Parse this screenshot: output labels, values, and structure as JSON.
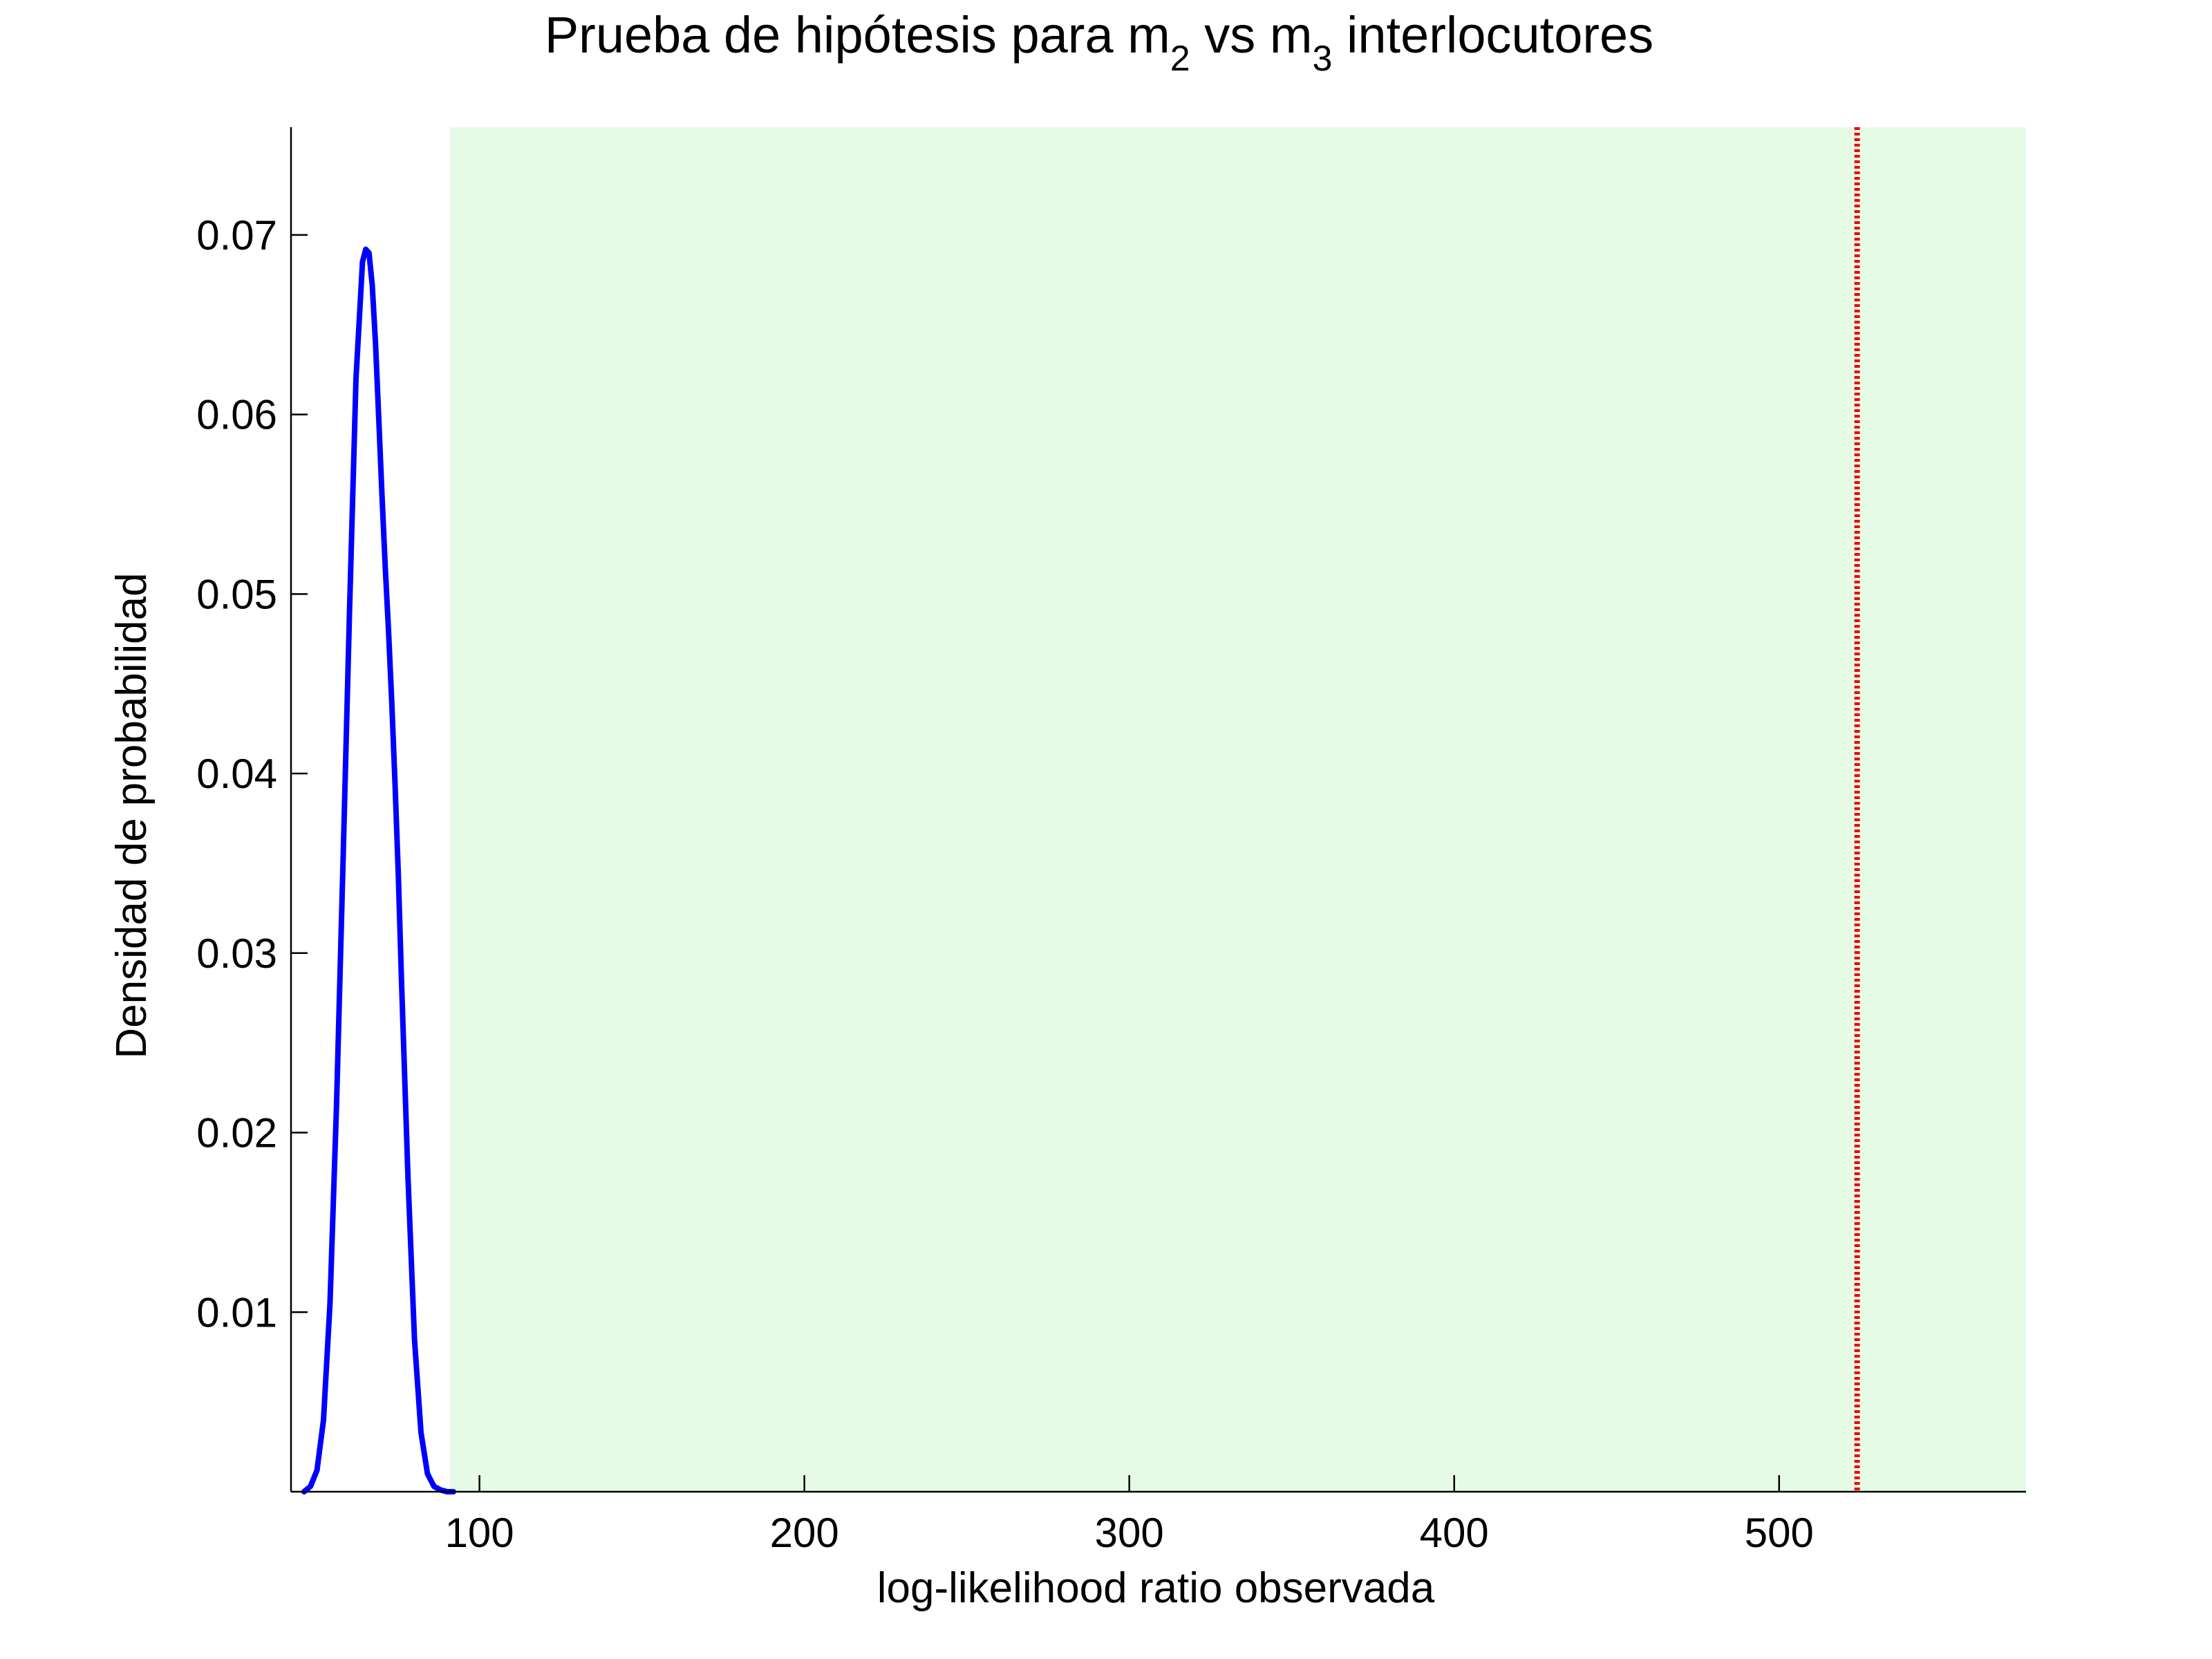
{
  "chart_data": {
    "type": "line",
    "title": {
      "prefix": "Prueba de hipótesis para m",
      "sub_1": "2",
      "middle": " vs m",
      "sub_2": "3",
      "suffix": " interlocutores"
    },
    "xlabel": "log-likelihood ratio observada",
    "ylabel": "Densidad de probabilidad",
    "xlim": [
      42,
      576
    ],
    "ylim": [
      0,
      0.076
    ],
    "x_ticks": [
      100,
      200,
      300,
      400,
      500
    ],
    "x_tick_labels": [
      "100",
      "200",
      "300",
      "400",
      "500"
    ],
    "y_ticks": [
      0.01,
      0.02,
      0.03,
      0.04,
      0.05,
      0.06,
      0.07
    ],
    "y_tick_labels": [
      "0.01",
      "0.02",
      "0.03",
      "0.04",
      "0.05",
      "0.06",
      "0.07"
    ],
    "grid": false,
    "rejection_region": {
      "x_start": 91,
      "x_end": 576,
      "color": "#e6fbe6"
    },
    "observed_line": {
      "x": 524,
      "color": "#ee0000",
      "style": "dotted"
    },
    "series": [
      {
        "color": "#0000ff",
        "x": [
          46,
          48,
          50,
          52,
          54,
          56,
          58,
          60,
          62,
          64,
          65,
          66,
          67,
          68,
          69,
          70,
          71,
          72,
          73,
          74,
          75,
          76,
          78,
          80,
          82,
          84,
          86,
          88,
          90,
          92
        ],
        "y": [
          0.0,
          0.0003,
          0.0012,
          0.004,
          0.0105,
          0.0215,
          0.035,
          0.049,
          0.062,
          0.0685,
          0.0692,
          0.069,
          0.0672,
          0.064,
          0.0598,
          0.0555,
          0.0515,
          0.048,
          0.044,
          0.0395,
          0.0345,
          0.0285,
          0.0175,
          0.0085,
          0.0033,
          0.001,
          0.0003,
          0.0001,
          0.0,
          0.0
        ]
      }
    ],
    "colors": {
      "axes": "#000000",
      "curve": "#0000ff",
      "region": "#e6fbe6",
      "observed": "#ee0000"
    }
  }
}
